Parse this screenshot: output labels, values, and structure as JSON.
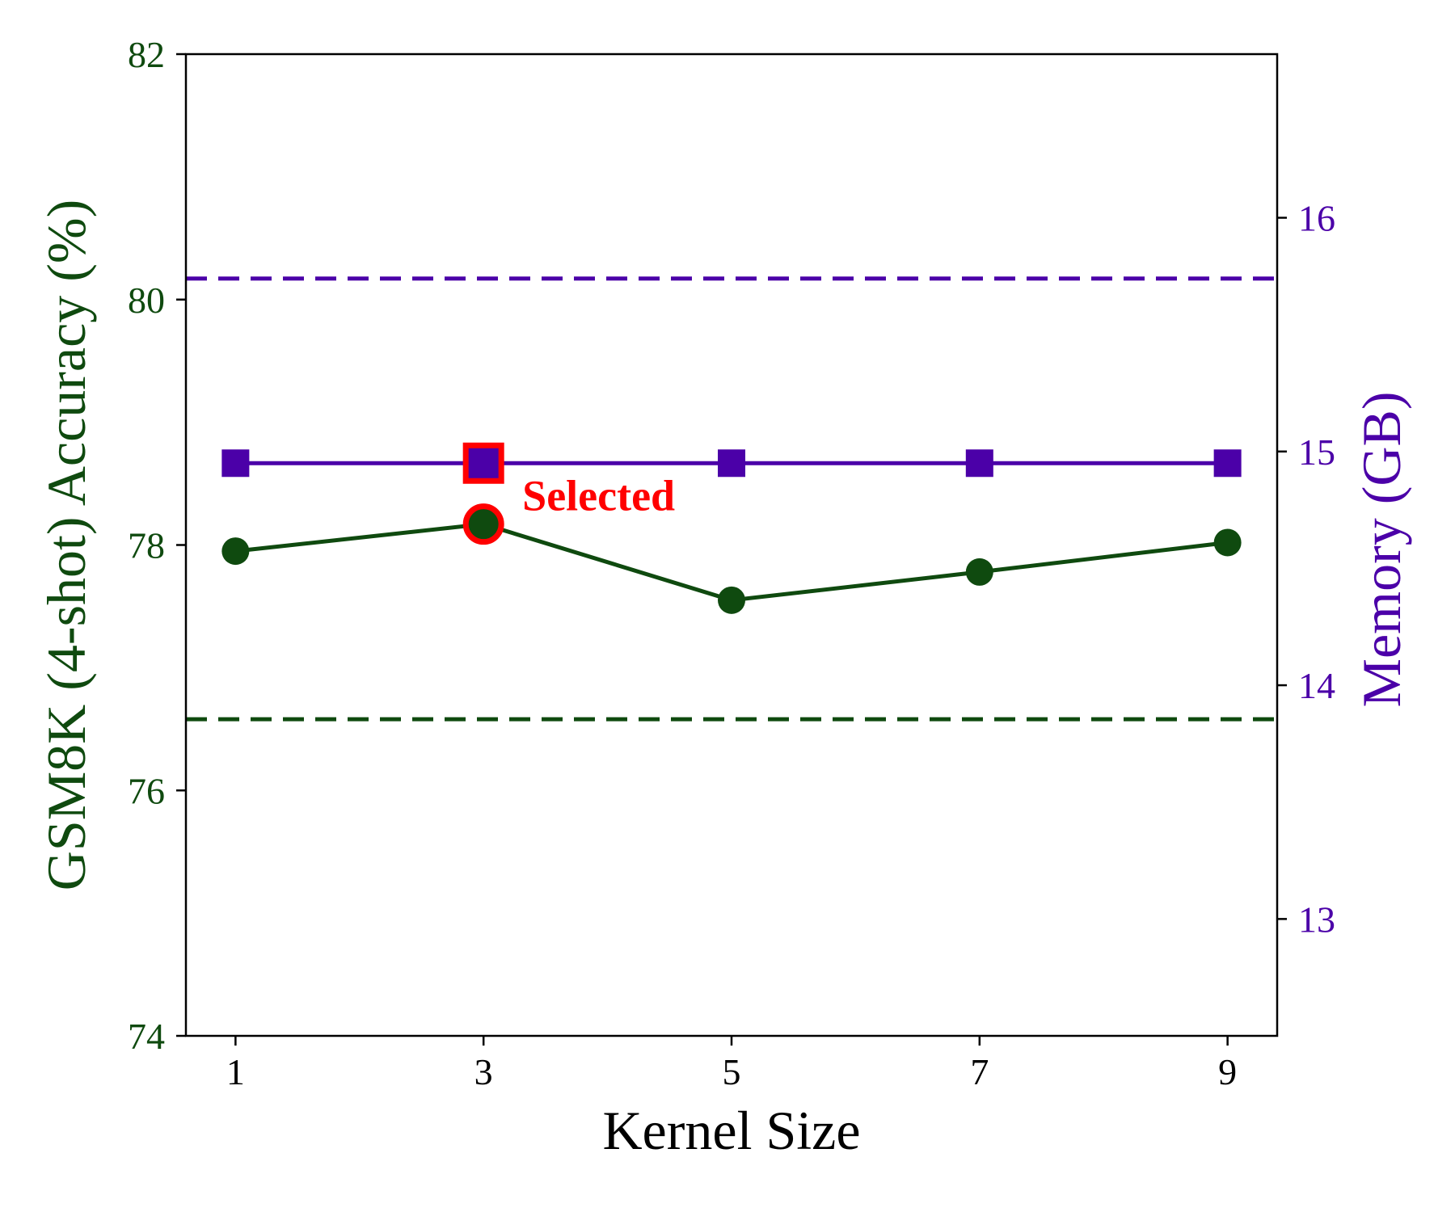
{
  "chart_data": {
    "type": "line",
    "xlabel": "Kernel Size",
    "x": [
      1,
      3,
      5,
      7,
      9
    ],
    "x_ticks": [
      "1",
      "3",
      "5",
      "7",
      "9"
    ],
    "xlim": [
      0.6,
      9.4
    ],
    "left_axis": {
      "label": "GSM8K (4-shot) Accuracy (%)",
      "ylim": [
        74,
        82
      ],
      "ticks": [
        74,
        76,
        78,
        80,
        82
      ],
      "color": "#0f4a0f"
    },
    "right_axis": {
      "label": "Memory (GB)",
      "ylim": [
        12.5,
        16.7
      ],
      "ticks": [
        13,
        14,
        15,
        16
      ],
      "color": "#4b00a8"
    },
    "series": [
      {
        "axis": "left",
        "marker": "circle",
        "color": "#0f4a0f",
        "values": [
          77.95,
          78.17,
          77.55,
          77.78,
          78.02
        ]
      },
      {
        "axis": "right",
        "marker": "square",
        "color": "#4b00a8",
        "values": [
          14.95,
          14.95,
          14.95,
          14.95,
          14.95
        ]
      }
    ],
    "reference_lines": [
      {
        "axis": "left",
        "value": 76.58,
        "style": "dashed",
        "color": "#0f4a0f"
      },
      {
        "axis": "right",
        "value": 15.74,
        "style": "dashed",
        "color": "#4b00a8"
      }
    ],
    "highlight": {
      "x": 3,
      "label": "Selected",
      "color": "#ff0000"
    }
  }
}
